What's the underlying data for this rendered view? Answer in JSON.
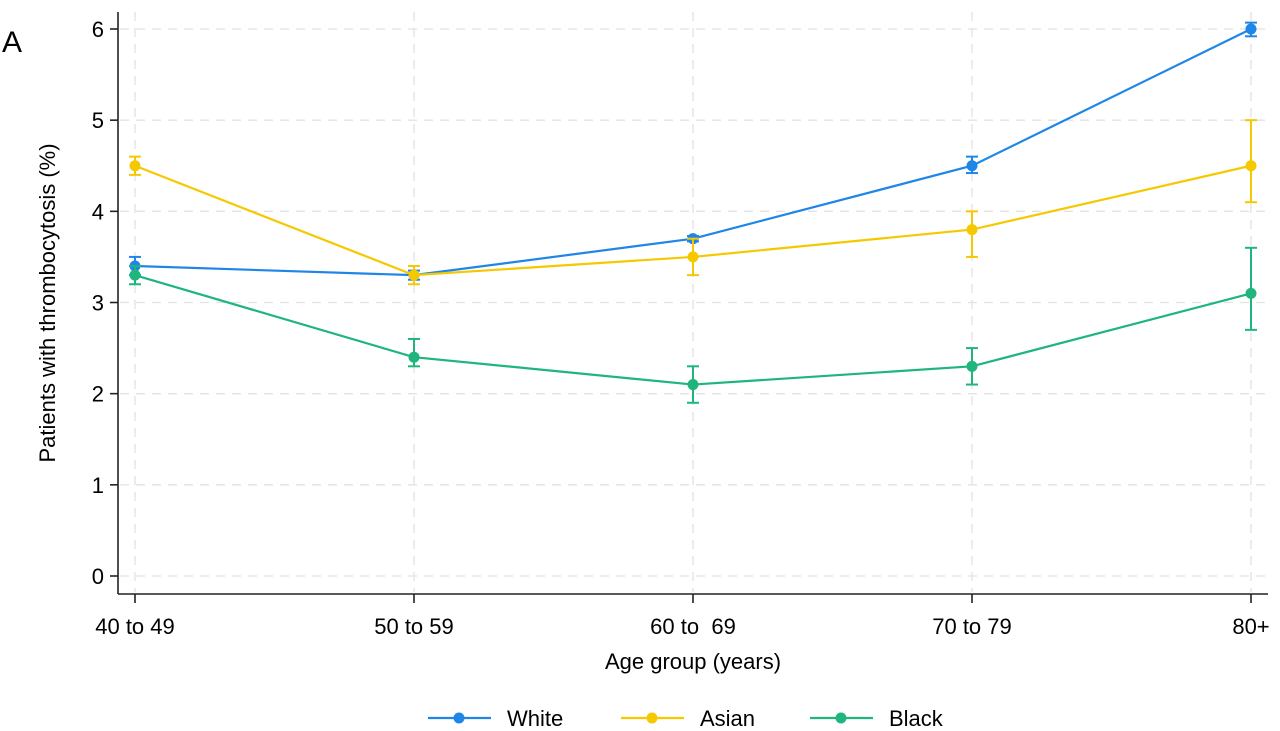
{
  "chart_data": {
    "type": "line",
    "panel_label": "A",
    "xlabel": "Age group (years)",
    "ylabel": "Patients with thrombocytosis (%)",
    "categories": [
      "40 to 49",
      "50 to 59",
      "60 to  69",
      "70 to 79",
      "80+"
    ],
    "ylim": [
      0,
      6
    ],
    "yticks": [
      0,
      1,
      2,
      3,
      4,
      5,
      6
    ],
    "grid": true,
    "legend_position": "bottom",
    "series": [
      {
        "name": "White",
        "color": "#1f86e8",
        "values": [
          3.4,
          3.3,
          3.7,
          4.5,
          6.0
        ],
        "ci_low": [
          3.3,
          3.25,
          3.67,
          4.42,
          5.92
        ],
        "ci_high": [
          3.5,
          3.35,
          3.73,
          4.6,
          6.07
        ]
      },
      {
        "name": "Asian",
        "color": "#f5c800",
        "values": [
          4.5,
          3.3,
          3.5,
          3.8,
          4.5
        ],
        "ci_low": [
          4.4,
          3.2,
          3.3,
          3.5,
          4.1
        ],
        "ci_high": [
          4.6,
          3.4,
          3.7,
          4.0,
          5.0
        ]
      },
      {
        "name": "Black",
        "color": "#1fb57d",
        "values": [
          3.3,
          2.4,
          2.1,
          2.3,
          3.1
        ],
        "ci_low": [
          3.2,
          2.3,
          1.9,
          2.1,
          2.7
        ],
        "ci_high": [
          3.4,
          2.6,
          2.3,
          2.5,
          3.6
        ]
      }
    ]
  }
}
